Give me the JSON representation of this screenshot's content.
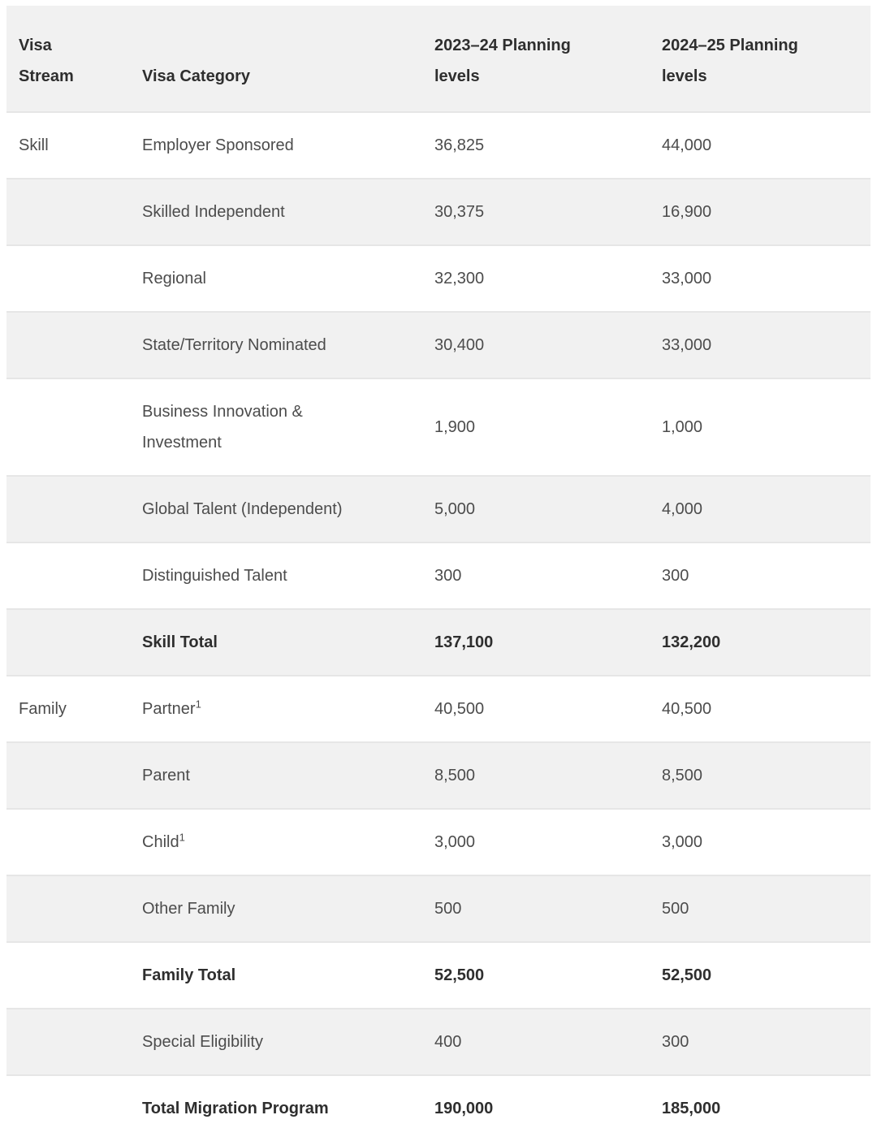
{
  "table": {
    "columns": [
      "Visa Stream",
      "Visa Category",
      "2023–24 Planning levels",
      "2024–25 Planning levels"
    ],
    "rows": [
      {
        "stream": "Skill",
        "category": "Employer Sponsored",
        "sup": "",
        "levels_2023_24": "36,825",
        "levels_2024_25": "44,000",
        "bold": false
      },
      {
        "stream": "",
        "category": "Skilled Independent",
        "sup": "",
        "levels_2023_24": "30,375",
        "levels_2024_25": "16,900",
        "bold": false
      },
      {
        "stream": "",
        "category": "Regional",
        "sup": "",
        "levels_2023_24": "32,300",
        "levels_2024_25": "33,000",
        "bold": false
      },
      {
        "stream": "",
        "category": "State/Territory Nominated",
        "sup": "",
        "levels_2023_24": "30,400",
        "levels_2024_25": "33,000",
        "bold": false
      },
      {
        "stream": "",
        "category": "Business Innovation & Investment",
        "sup": "",
        "levels_2023_24": "1,900",
        "levels_2024_25": "1,000",
        "bold": false
      },
      {
        "stream": "",
        "category": "Global Talent (Independent)",
        "sup": "",
        "levels_2023_24": "5,000",
        "levels_2024_25": "4,000",
        "bold": false
      },
      {
        "stream": "",
        "category": "Distinguished Talent",
        "sup": "",
        "levels_2023_24": "300",
        "levels_2024_25": "300",
        "bold": false
      },
      {
        "stream": "",
        "category": "Skill Total",
        "sup": "",
        "levels_2023_24": "137,100",
        "levels_2024_25": "132,200",
        "bold": true
      },
      {
        "stream": "Family",
        "category": "Partner",
        "sup": "1",
        "levels_2023_24": "40,500",
        "levels_2024_25": "40,500",
        "bold": false
      },
      {
        "stream": "",
        "category": "Parent",
        "sup": "",
        "levels_2023_24": "8,500",
        "levels_2024_25": "8,500",
        "bold": false
      },
      {
        "stream": "",
        "category": "Child",
        "sup": "1",
        "levels_2023_24": "3,000",
        "levels_2024_25": "3,000",
        "bold": false
      },
      {
        "stream": "",
        "category": "Other Family",
        "sup": "",
        "levels_2023_24": "500",
        "levels_2024_25": "500",
        "bold": false
      },
      {
        "stream": "",
        "category": "Family Total",
        "sup": "",
        "levels_2023_24": "52,500",
        "levels_2024_25": "52,500",
        "bold": true
      },
      {
        "stream": "",
        "category": "Special Eligibility",
        "sup": "",
        "levels_2023_24": "400",
        "levels_2024_25": "300",
        "bold": false
      },
      {
        "stream": "",
        "category": "Total Migration Program",
        "sup": "",
        "levels_2023_24": "190,000",
        "levels_2024_25": "185,000",
        "bold": true
      }
    ],
    "colors": {
      "shaded_row_bg": "#f1f1f1",
      "row_border": "#e6e6e6",
      "header_text": "#2e2e2e",
      "body_text": "#4c4c4c"
    }
  }
}
